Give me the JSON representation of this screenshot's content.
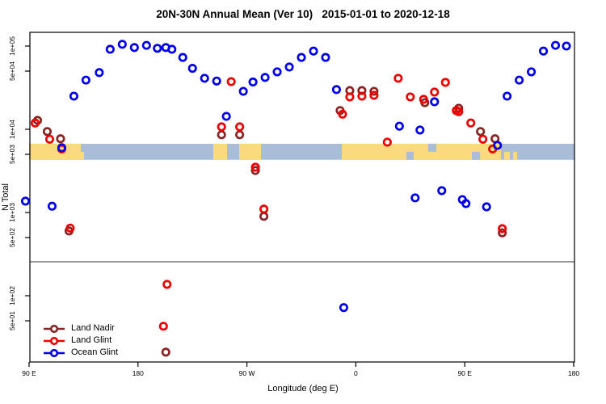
{
  "title": "20N-30N Annual Mean (Ver 10)   2015-01-01 to 2020-12-18",
  "chart_data": {
    "type": "scatter",
    "xlabel": "Longitude (deg E)",
    "ylabel": "N Total",
    "x_axis": {
      "ticks": [
        {
          "lon": 90,
          "label": "90 E"
        },
        {
          "lon": 180,
          "label": "180"
        },
        {
          "lon": 270,
          "label": "90 W"
        },
        {
          "lon": 360,
          "label": "0"
        },
        {
          "lon": 450,
          "label": "90 E"
        },
        {
          "lon": 540,
          "label": "180"
        }
      ],
      "range_lon": [
        90,
        540
      ]
    },
    "y_axis": {
      "scale": "log",
      "ticks": [
        {
          "value": 100000,
          "label": "1e+05"
        },
        {
          "value": 50000,
          "label": "5e+04"
        },
        {
          "value": 10000,
          "label": "1e+04"
        },
        {
          "value": 5000,
          "label": "5e+03"
        },
        {
          "value": 1000,
          "label": "1e+03"
        },
        {
          "value": 500,
          "label": "5e+02"
        },
        {
          "value": 100,
          "label": "1e+02"
        },
        {
          "value": 50,
          "label": "5e+01"
        }
      ],
      "range": [
        16,
        150000
      ]
    },
    "separator_line": {
      "value": 256,
      "color": "#999999"
    },
    "map_band": {
      "value_top": 6700,
      "value_bottom": 4300,
      "ocean_color": "#A9BCD8",
      "land_color": "#FBD97E",
      "land_segments": [
        {
          "lon": [
            90,
            132.7
          ],
          "part": "full"
        },
        {
          "lon": [
            130,
            135.4
          ],
          "part": "bottom"
        },
        {
          "lon": [
            242.2,
            253.6
          ],
          "part": "full"
        },
        {
          "lon": [
            263.6,
            281.6
          ],
          "part": "full"
        },
        {
          "lon": [
            348.4,
            479.9
          ],
          "part": "full"
        },
        {
          "lon": [
            474.6,
            478.6
          ],
          "part": "bottom"
        },
        {
          "lon": [
            482.6,
            487.3
          ],
          "part": "bottom"
        },
        {
          "lon": [
            490,
            493.3
          ],
          "part": "bottom"
        }
      ],
      "ocean_notches": [
        {
          "lon": [
            401.8,
            407.8
          ],
          "part": "bottom"
        },
        {
          "lon": [
            419.8,
            426.5
          ],
          "part": "top"
        },
        {
          "lon": [
            455.9,
            462.6
          ],
          "part": "bottom"
        }
      ]
    },
    "series": [
      {
        "name": "Land Nadir",
        "color": "#8B2323",
        "points": [
          [
            97,
            12800
          ],
          [
            105,
            9400
          ],
          [
            116,
            7700
          ],
          [
            249,
            8600
          ],
          [
            264,
            8600
          ],
          [
            355,
            29200
          ],
          [
            365,
            29200
          ],
          [
            375,
            28600
          ],
          [
            417,
            20900
          ],
          [
            347,
            16800
          ],
          [
            445,
            17900
          ],
          [
            463,
            9400
          ],
          [
            475,
            7700
          ],
          [
            277,
            3200
          ],
          [
            123,
            600
          ],
          [
            284,
            900
          ],
          [
            481,
            570
          ],
          [
            203,
            21
          ]
        ]
      },
      {
        "name": "Land Glint",
        "color": "#EE0000",
        "points": [
          [
            95,
            11900
          ],
          [
            107,
            7600
          ],
          [
            117,
            5800
          ],
          [
            257,
            37400
          ],
          [
            249,
            10700
          ],
          [
            264,
            10700
          ],
          [
            355,
            24500
          ],
          [
            365,
            25000
          ],
          [
            375,
            25600
          ],
          [
            395,
            41000
          ],
          [
            405,
            24500
          ],
          [
            416,
            22900
          ],
          [
            425,
            28000
          ],
          [
            434,
            36600
          ],
          [
            443,
            16800
          ],
          [
            349,
            15200
          ],
          [
            386,
            7000
          ],
          [
            445,
            16300
          ],
          [
            455,
            11900
          ],
          [
            465,
            7600
          ],
          [
            473,
            5800
          ],
          [
            277,
            3500
          ],
          [
            124,
            650
          ],
          [
            284,
            1100
          ],
          [
            481,
            640
          ],
          [
            204,
            137
          ],
          [
            201,
            43
          ]
        ]
      },
      {
        "name": "Ocean Glint",
        "color": "#0000EE",
        "points": [
          [
            157,
            91500
          ],
          [
            167,
            105000
          ],
          [
            177,
            96000
          ],
          [
            187,
            102000
          ],
          [
            196,
            94000
          ],
          [
            203,
            96000
          ],
          [
            208,
            91500
          ],
          [
            217,
            73000
          ],
          [
            225,
            54000
          ],
          [
            235,
            41000
          ],
          [
            245,
            38000
          ],
          [
            267,
            28600
          ],
          [
            275,
            37000
          ],
          [
            285,
            42000
          ],
          [
            295,
            49000
          ],
          [
            305,
            56000
          ],
          [
            315,
            73000
          ],
          [
            325,
            87000
          ],
          [
            335,
            73000
          ],
          [
            344,
            30000
          ],
          [
            148,
            48000
          ],
          [
            137,
            39000
          ],
          [
            127,
            25000
          ],
          [
            253,
            14300
          ],
          [
            117,
            6000
          ],
          [
            477,
            6400
          ],
          [
            425,
            21400
          ],
          [
            396,
            10900
          ],
          [
            413,
            9800
          ],
          [
            485,
            25000
          ],
          [
            495,
            39000
          ],
          [
            505,
            49000
          ],
          [
            515,
            87000
          ],
          [
            525,
            102000
          ],
          [
            534,
            100000
          ],
          [
            87,
            1370
          ],
          [
            109,
            1190
          ],
          [
            409,
            1500
          ],
          [
            431,
            1830
          ],
          [
            448,
            1430
          ],
          [
            451,
            1280
          ],
          [
            468,
            1170
          ],
          [
            350,
            72
          ]
        ]
      }
    ]
  },
  "legend": {
    "items": [
      {
        "label": "Land Nadir"
      },
      {
        "label": "Land Glint"
      },
      {
        "label": "Ocean Glint"
      }
    ]
  }
}
